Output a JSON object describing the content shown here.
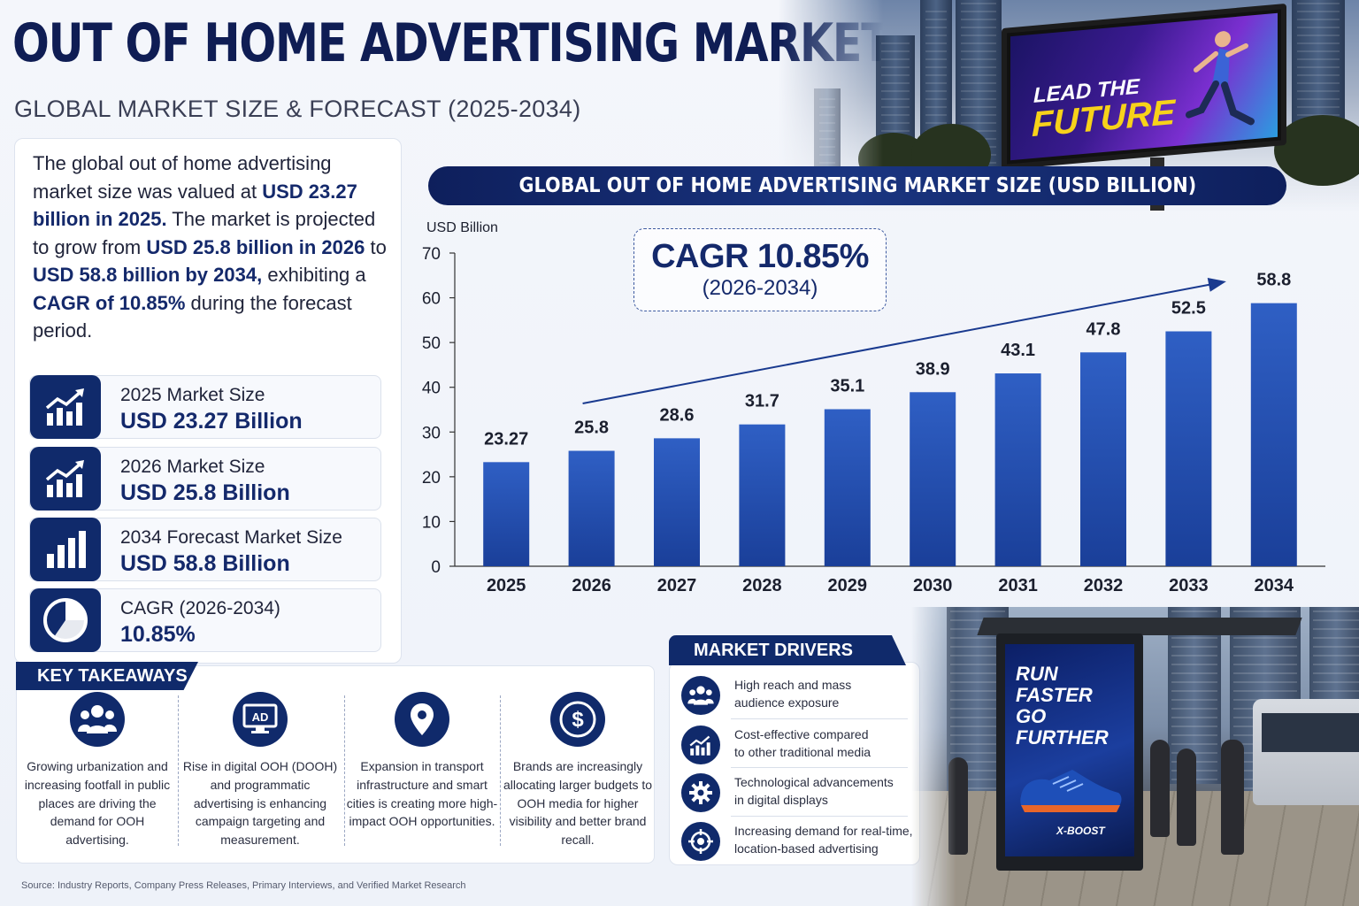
{
  "header": {
    "title": "OUT OF HOME ADVERTISING MARKET",
    "subtitle": "GLOBAL MARKET SIZE & FORECAST (2025-2034)"
  },
  "colors": {
    "navy": "#102a6b",
    "bar_top": "#2f5fc4",
    "bar_bottom": "#1a3f99",
    "trend_arrow": "#1a3a8f"
  },
  "billboard": {
    "line1": "LEAD THE",
    "line2": "FUTURE"
  },
  "summary": {
    "p1": "The global out of home advertising market size was valued at ",
    "p1_em": "USD 23.27 billion in 2025.",
    "p2": " The market is projected to grow from ",
    "p2_em": "USD 25.8 billion in 2026",
    "p3": " to ",
    "p3_em": "USD 58.8 billion by 2034,",
    "p4": " exhibiting a ",
    "p4_em": "CAGR of 10.85%",
    "p5": " during the forecast period."
  },
  "stats": [
    {
      "icon": "growth-chart-icon",
      "label": "2025 Market Size",
      "value": "USD 23.27 Billion"
    },
    {
      "icon": "growth-chart-icon",
      "label": "2026 Market Size",
      "value": "USD 25.8 Billion"
    },
    {
      "icon": "bar-chart-icon",
      "label": "2034 Forecast Market Size",
      "value": "USD 58.8 Billion"
    },
    {
      "icon": "pie-chart-icon",
      "label": "CAGR (2026-2034)",
      "value": "10.85%"
    }
  ],
  "chart_data": {
    "type": "bar",
    "title": "GLOBAL OUT OF HOME ADVERTISING MARKET SIZE (USD BILLION)",
    "ylabel": "USD Billion",
    "xlabel": "",
    "categories": [
      "2025",
      "2026",
      "2027",
      "2028",
      "2029",
      "2030",
      "2031",
      "2032",
      "2033",
      "2034"
    ],
    "values": [
      23.27,
      25.8,
      28.6,
      31.7,
      35.1,
      38.9,
      43.1,
      47.8,
      52.5,
      58.8
    ],
    "value_labels": [
      "23.27",
      "25.8",
      "28.6",
      "31.7",
      "35.1",
      "38.9",
      "43.1",
      "47.8",
      "52.5",
      "58.8"
    ],
    "ylim": [
      0,
      70
    ],
    "yticks": [
      0,
      10,
      20,
      30,
      40,
      50,
      60,
      70
    ],
    "grid": false,
    "annotation": {
      "cagr": "CAGR 10.85%",
      "period": "(2026-2034)"
    }
  },
  "takeaways": {
    "header": "KEY TAKEAWAYS",
    "items": [
      {
        "icon": "people-group-icon",
        "text": "Growing urbanization and increasing footfall in public places are driving the demand for OOH advertising."
      },
      {
        "icon": "digital-screen-icon",
        "icon_text": "AD",
        "text": "Rise in digital OOH (DOOH) and programmatic advertising is enhancing campaign targeting and measurement."
      },
      {
        "icon": "location-pin-icon",
        "text": "Expansion in transport infrastructure and smart cities is creating more high-impact OOH opportunities."
      },
      {
        "icon": "dollar-coin-icon",
        "text": "Brands are increasingly allocating larger budgets to OOH media for higher visibility and better brand recall."
      }
    ]
  },
  "drivers": {
    "header": "MARKET DRIVERS",
    "items": [
      {
        "icon": "audience-icon",
        "line1": "High reach and mass",
        "line2": "audience exposure"
      },
      {
        "icon": "cost-chart-icon",
        "line1": "Cost-effective compared",
        "line2": "to other traditional media"
      },
      {
        "icon": "gear-icon",
        "line1": "Technological advancements",
        "line2": "in digital displays"
      },
      {
        "icon": "target-icon",
        "line1": "Increasing demand for real-time,",
        "line2": "location-based advertising"
      }
    ]
  },
  "poster": {
    "line1": "RUN",
    "line2": "FASTER",
    "line3": "GO",
    "line4": "FURTHER",
    "brand": "X-BOOST"
  },
  "source": "Source: Industry Reports, Company Press Releases, Primary Interviews, and Verified Market Research"
}
